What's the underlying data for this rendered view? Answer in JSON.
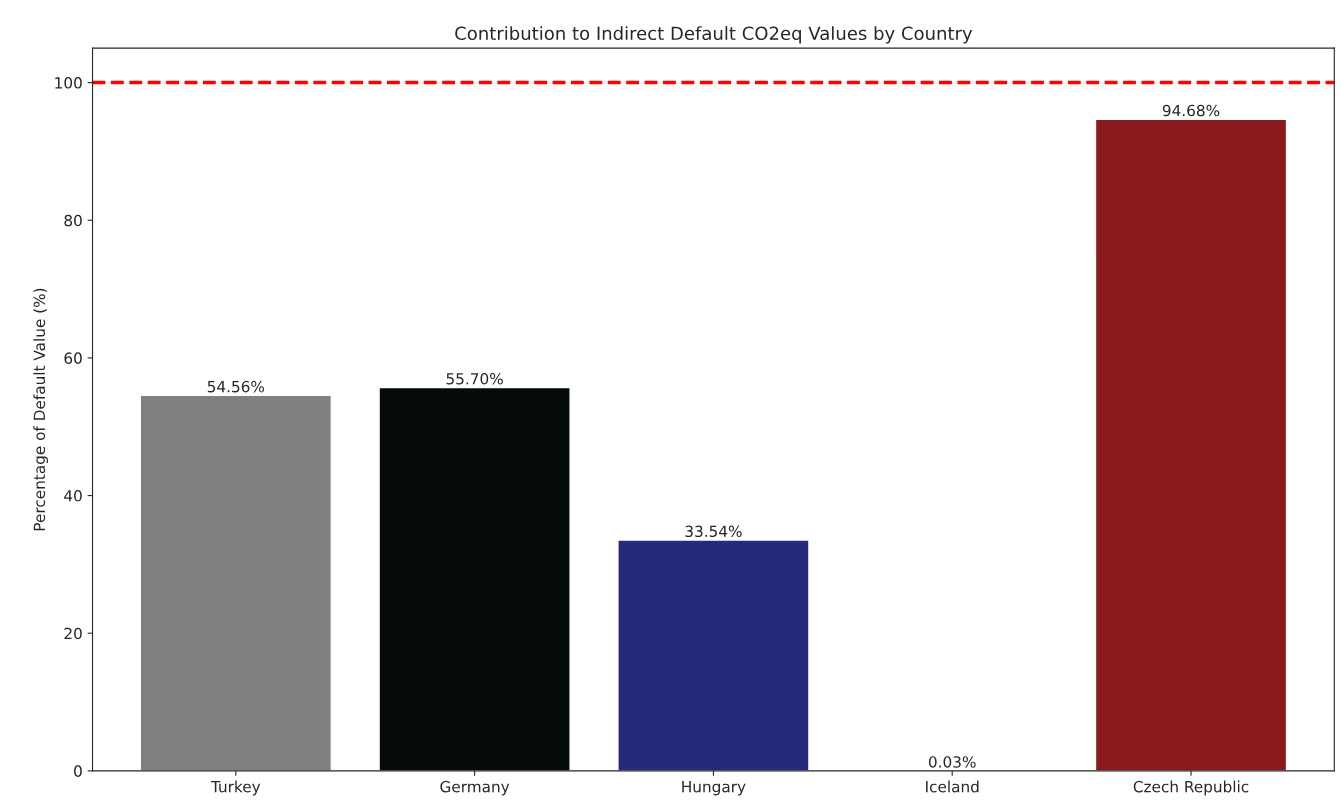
{
  "chart_data": {
    "type": "bar",
    "title": "Contribution to Indirect Default CO2eq Values by Country",
    "ylabel": "Percentage of Default Value (%)",
    "categories": [
      "Turkey",
      "Germany",
      "Hungary",
      "Iceland",
      "Czech Republic"
    ],
    "values": [
      54.56,
      55.7,
      33.54,
      0.03,
      94.68
    ],
    "colors": [
      "#7f8080",
      "#050a0a",
      "#262a7a",
      "#3a7d44",
      "#8b1a1c"
    ],
    "value_labels": [
      "54.56%",
      "55.70%",
      "33.54%",
      "0.03%",
      "94.68%"
    ],
    "ylim": [
      0,
      105
    ],
    "yticks": [
      0,
      20,
      40,
      60,
      80,
      100
    ],
    "ref_lines": [
      {
        "axis": "y",
        "value": 100,
        "color": "#ff0000",
        "line_style": "dashed"
      }
    ],
    "grid": false,
    "legend": false
  }
}
